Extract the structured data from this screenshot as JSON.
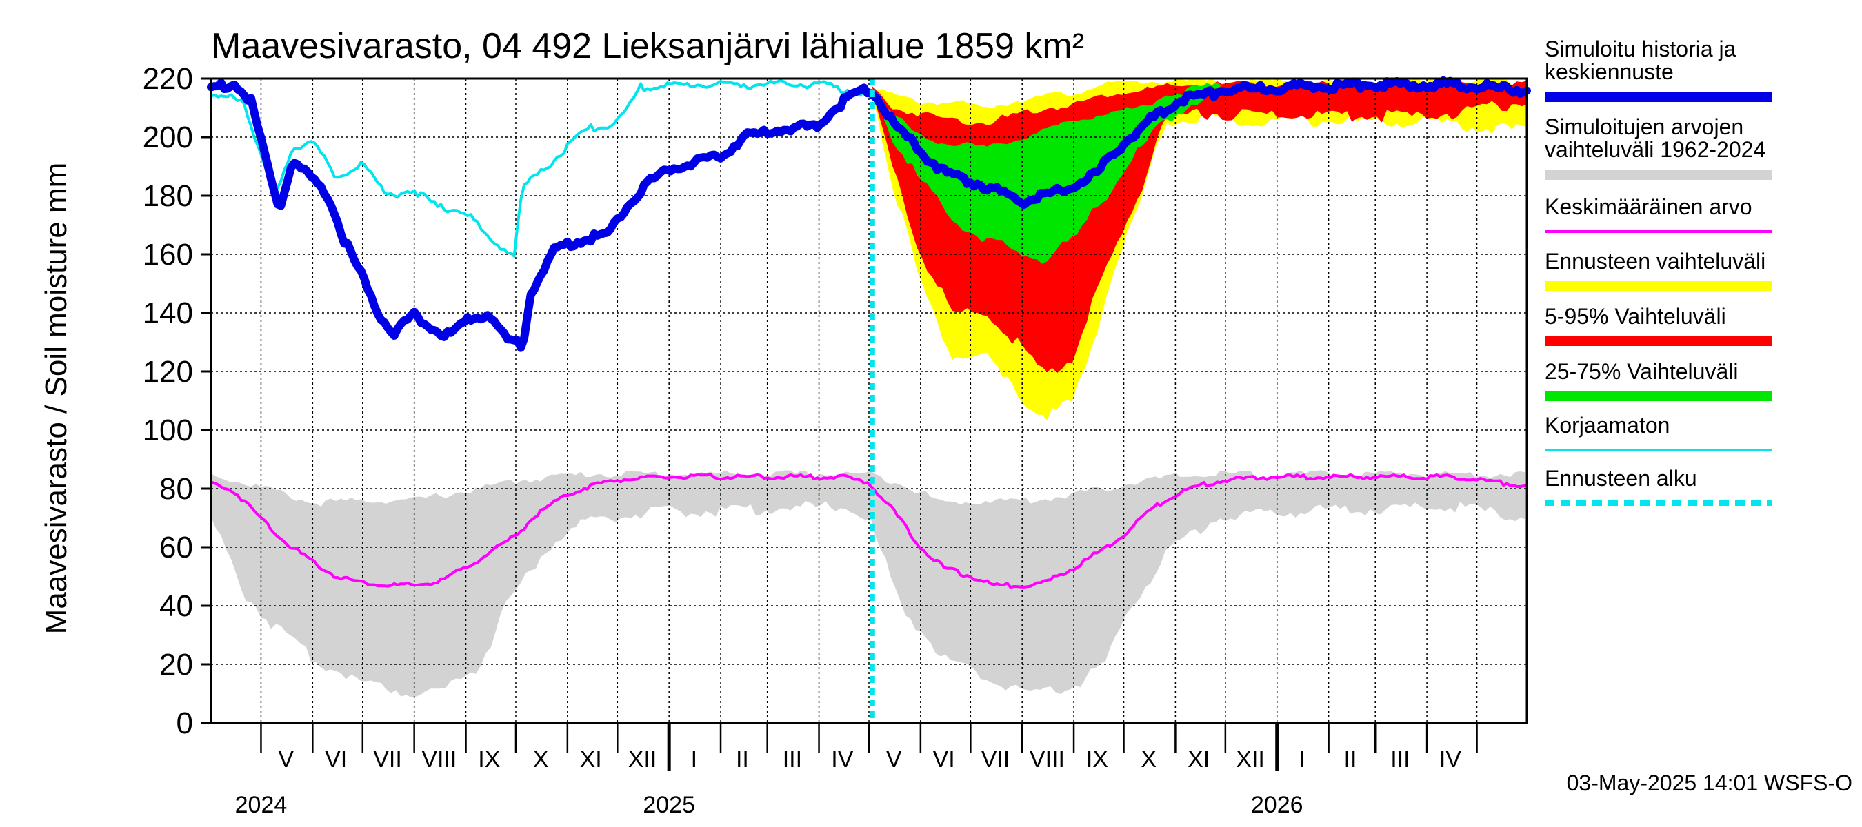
{
  "chart_data": {
    "type": "area",
    "title": "Maavesivarasto, 04 492 Lieksanjärvi lähialue 1859 km²",
    "ylabel": "Maavesivarasto / Soil moisture   mm",
    "ylim": [
      0,
      220
    ],
    "yticks": [
      0,
      20,
      40,
      60,
      80,
      100,
      120,
      140,
      160,
      180,
      200,
      220
    ],
    "x_range": [
      "2024-04-01",
      "2026-05-31"
    ],
    "grid": true,
    "legend_placement": "right",
    "month_labels": [
      {
        "label": "V",
        "date": "2024-05-16"
      },
      {
        "label": "VI",
        "date": "2024-06-15"
      },
      {
        "label": "VII",
        "date": "2024-07-16"
      },
      {
        "label": "VIII",
        "date": "2024-08-16"
      },
      {
        "label": "IX",
        "date": "2024-09-15"
      },
      {
        "label": "X",
        "date": "2024-10-16"
      },
      {
        "label": "XI",
        "date": "2024-11-15"
      },
      {
        "label": "XII",
        "date": "2024-12-16"
      },
      {
        "label": "I",
        "date": "2025-01-16"
      },
      {
        "label": "II",
        "date": "2025-02-14"
      },
      {
        "label": "III",
        "date": "2025-03-16"
      },
      {
        "label": "IV",
        "date": "2025-04-15"
      },
      {
        "label": "V",
        "date": "2025-05-16"
      },
      {
        "label": "VI",
        "date": "2025-06-15"
      },
      {
        "label": "VII",
        "date": "2025-07-16"
      },
      {
        "label": "VIII",
        "date": "2025-08-16"
      },
      {
        "label": "IX",
        "date": "2025-09-15"
      },
      {
        "label": "X",
        "date": "2025-10-16"
      },
      {
        "label": "XI",
        "date": "2025-11-15"
      },
      {
        "label": "XII",
        "date": "2025-12-16"
      },
      {
        "label": "I",
        "date": "2026-01-16"
      },
      {
        "label": "II",
        "date": "2026-02-14"
      },
      {
        "label": "III",
        "date": "2026-03-16"
      },
      {
        "label": "IV",
        "date": "2026-04-15"
      }
    ],
    "year_labels": [
      {
        "label": "2024",
        "date": "2024-05-01"
      },
      {
        "label": "2025",
        "date": "2025-01-01"
      },
      {
        "label": "2026",
        "date": "2026-01-01"
      }
    ],
    "forecast_start": "2025-05-03",
    "legend": [
      {
        "label": "Simuloitu historia ja\nkeskiennuste",
        "color": "#0000e6",
        "style": "thick"
      },
      {
        "label": "Simuloitujen arvojen\nvaihteluväli 1962-2024",
        "color": "#d3d3d3",
        "style": "thick"
      },
      {
        "label": "Keskimääräinen arvo",
        "color": "#ff00ff",
        "style": "thin"
      },
      {
        "label": "Ennusteen vaihteluväli",
        "color": "#ffff00",
        "style": "thick"
      },
      {
        "label": "5-95% Vaihteluväli",
        "color": "#ff0000",
        "style": "thick"
      },
      {
        "label": "25-75% Vaihteluväli",
        "color": "#00e600",
        "style": "thick"
      },
      {
        "label": "Korjaamaton",
        "color": "#00e5ee",
        "style": "thin"
      },
      {
        "label": "Ennusteen alku",
        "color": "#00e5ee",
        "style": "dashed"
      }
    ],
    "series": [
      {
        "name": "Simuloitu historia ja keskiennuste",
        "color": "#0000e6",
        "points": [
          [
            "2024-04-01",
            217
          ],
          [
            "2024-04-15",
            218
          ],
          [
            "2024-04-25",
            212
          ],
          [
            "2024-05-05",
            190
          ],
          [
            "2024-05-12",
            175
          ],
          [
            "2024-05-20",
            192
          ],
          [
            "2024-06-01",
            185
          ],
          [
            "2024-06-10",
            180
          ],
          [
            "2024-06-20",
            165
          ],
          [
            "2024-07-01",
            152
          ],
          [
            "2024-07-10",
            140
          ],
          [
            "2024-07-20",
            133
          ],
          [
            "2024-08-01",
            140
          ],
          [
            "2024-08-10",
            135
          ],
          [
            "2024-08-20",
            132
          ],
          [
            "2024-09-01",
            137
          ],
          [
            "2024-09-15",
            140
          ],
          [
            "2024-09-25",
            131
          ],
          [
            "2024-10-05",
            129
          ],
          [
            "2024-10-10",
            147
          ],
          [
            "2024-10-25",
            162
          ],
          [
            "2024-11-10",
            165
          ],
          [
            "2024-11-25",
            167
          ],
          [
            "2024-12-05",
            175
          ],
          [
            "2024-12-20",
            185
          ],
          [
            "2025-01-05",
            190
          ],
          [
            "2025-01-31",
            193
          ],
          [
            "2025-02-15",
            200
          ],
          [
            "2025-03-01",
            202
          ],
          [
            "2025-03-31",
            204
          ],
          [
            "2025-04-15",
            212
          ],
          [
            "2025-04-25",
            216
          ],
          [
            "2025-05-03",
            216
          ],
          [
            "2025-05-15",
            205
          ],
          [
            "2025-06-01",
            195
          ],
          [
            "2025-06-15",
            188
          ],
          [
            "2025-07-01",
            185
          ],
          [
            "2025-07-15",
            182
          ],
          [
            "2025-08-01",
            178
          ],
          [
            "2025-08-15",
            180
          ],
          [
            "2025-09-01",
            183
          ],
          [
            "2025-09-15",
            188
          ],
          [
            "2025-10-01",
            198
          ],
          [
            "2025-10-15",
            205
          ],
          [
            "2025-11-01",
            212
          ],
          [
            "2025-12-01",
            216
          ],
          [
            "2026-01-01",
            217
          ],
          [
            "2026-03-01",
            218
          ],
          [
            "2026-04-15",
            218
          ],
          [
            "2026-05-31",
            216
          ]
        ]
      },
      {
        "name": "Korjaamaton",
        "color": "#00e5ee",
        "points": [
          [
            "2024-04-01",
            215
          ],
          [
            "2024-04-20",
            212
          ],
          [
            "2024-05-01",
            195
          ],
          [
            "2024-05-10",
            180
          ],
          [
            "2024-05-20",
            195
          ],
          [
            "2024-06-01",
            200
          ],
          [
            "2024-06-15",
            185
          ],
          [
            "2024-07-01",
            192
          ],
          [
            "2024-07-15",
            180
          ],
          [
            "2024-08-01",
            182
          ],
          [
            "2024-08-15",
            176
          ],
          [
            "2024-09-01",
            175
          ],
          [
            "2024-09-15",
            165
          ],
          [
            "2024-09-30",
            160
          ],
          [
            "2024-10-05",
            183
          ],
          [
            "2024-10-20",
            190
          ],
          [
            "2024-11-01",
            197
          ],
          [
            "2024-11-15",
            203
          ],
          [
            "2024-12-01",
            205
          ],
          [
            "2024-12-15",
            217
          ],
          [
            "2025-01-15",
            218
          ],
          [
            "2025-02-15",
            218
          ],
          [
            "2025-03-31",
            218
          ],
          [
            "2025-04-20",
            216
          ],
          [
            "2025-05-03",
            214
          ]
        ]
      },
      {
        "name": "Keskimääräinen arvo",
        "color": "#ff00ff",
        "points": [
          [
            "2024-04-01",
            82
          ],
          [
            "2024-04-15",
            79
          ],
          [
            "2024-05-01",
            70
          ],
          [
            "2024-05-15",
            62
          ],
          [
            "2024-06-01",
            55
          ],
          [
            "2024-06-15",
            50
          ],
          [
            "2024-07-01",
            48
          ],
          [
            "2024-07-15",
            47
          ],
          [
            "2024-08-01",
            47
          ],
          [
            "2024-08-15",
            48
          ],
          [
            "2024-09-01",
            53
          ],
          [
            "2024-09-15",
            58
          ],
          [
            "2024-10-01",
            64
          ],
          [
            "2024-10-15",
            72
          ],
          [
            "2024-11-01",
            78
          ],
          [
            "2024-11-15",
            81
          ],
          [
            "2024-12-01",
            83
          ],
          [
            "2025-01-01",
            84
          ],
          [
            "2025-03-01",
            84
          ],
          [
            "2025-04-15",
            84
          ],
          [
            "2025-05-01",
            82
          ],
          [
            "2025-05-15",
            73
          ],
          [
            "2025-06-01",
            60
          ],
          [
            "2025-06-15",
            53
          ],
          [
            "2025-07-01",
            50
          ],
          [
            "2025-07-15",
            47
          ],
          [
            "2025-08-01",
            47
          ],
          [
            "2025-08-15",
            48
          ],
          [
            "2025-09-01",
            53
          ],
          [
            "2025-09-15",
            58
          ],
          [
            "2025-10-01",
            64
          ],
          [
            "2025-10-15",
            72
          ],
          [
            "2025-11-01",
            78
          ],
          [
            "2025-11-15",
            81
          ],
          [
            "2025-12-01",
            83
          ],
          [
            "2026-01-01",
            84
          ],
          [
            "2026-04-15",
            84
          ],
          [
            "2026-05-31",
            81
          ]
        ]
      }
    ],
    "bands": [
      {
        "name": "Simuloitujen arvojen vaihteluväli 1962-2024",
        "color": "#d3d3d3",
        "points": [
          [
            "2024-04-01",
            70,
            85
          ],
          [
            "2024-04-20",
            45,
            82
          ],
          [
            "2024-05-05",
            35,
            80
          ],
          [
            "2024-06-01",
            22,
            75
          ],
          [
            "2024-07-01",
            14,
            76
          ],
          [
            "2024-08-01",
            10,
            76
          ],
          [
            "2024-08-20",
            12,
            78
          ],
          [
            "2024-09-10",
            20,
            80
          ],
          [
            "2024-09-25",
            40,
            82
          ],
          [
            "2024-10-20",
            60,
            84
          ],
          [
            "2024-11-15",
            70,
            85
          ],
          [
            "2025-01-01",
            72,
            85
          ],
          [
            "2025-04-15",
            74,
            85
          ],
          [
            "2025-05-01",
            70,
            85
          ],
          [
            "2025-05-20",
            40,
            82
          ],
          [
            "2025-06-15",
            22,
            75
          ],
          [
            "2025-07-15",
            14,
            76
          ],
          [
            "2025-08-10",
            10,
            76
          ],
          [
            "2025-08-30",
            12,
            78
          ],
          [
            "2025-09-20",
            20,
            80
          ],
          [
            "2025-10-05",
            40,
            82
          ],
          [
            "2025-10-30",
            60,
            84
          ],
          [
            "2025-11-25",
            70,
            85
          ],
          [
            "2026-01-01",
            72,
            85
          ],
          [
            "2026-04-15",
            74,
            85
          ],
          [
            "2026-05-31",
            70,
            85
          ]
        ]
      },
      {
        "name": "Ennusteen vaihteluväli",
        "color": "#ffff00",
        "points": [
          [
            "2025-05-03",
            215,
            218
          ],
          [
            "2025-05-15",
            185,
            214
          ],
          [
            "2025-06-01",
            150,
            212
          ],
          [
            "2025-06-20",
            125,
            212
          ],
          [
            "2025-07-10",
            125,
            210
          ],
          [
            "2025-08-01",
            110,
            213
          ],
          [
            "2025-08-15",
            105,
            214
          ],
          [
            "2025-09-01",
            110,
            215
          ],
          [
            "2025-09-10",
            125,
            217
          ],
          [
            "2025-09-25",
            155,
            218
          ],
          [
            "2025-10-10",
            175,
            219
          ],
          [
            "2025-10-25",
            205,
            219
          ],
          [
            "2025-11-15",
            206,
            219
          ],
          [
            "2026-04-01",
            205,
            219
          ],
          [
            "2026-05-31",
            202,
            219
          ]
        ]
      },
      {
        "name": "5-95% Vaihteluväli",
        "color": "#ff0000",
        "points": [
          [
            "2025-05-03",
            215,
            217
          ],
          [
            "2025-05-15",
            190,
            210
          ],
          [
            "2025-06-01",
            160,
            208
          ],
          [
            "2025-06-20",
            140,
            206
          ],
          [
            "2025-07-10",
            140,
            205
          ],
          [
            "2025-08-01",
            128,
            208
          ],
          [
            "2025-08-15",
            118,
            210
          ],
          [
            "2025-09-01",
            125,
            211
          ],
          [
            "2025-09-10",
            140,
            213
          ],
          [
            "2025-09-25",
            160,
            215
          ],
          [
            "2025-10-10",
            180,
            216
          ],
          [
            "2025-10-25",
            207,
            217
          ],
          [
            "2025-11-15",
            208,
            218
          ],
          [
            "2026-04-01",
            207,
            218
          ],
          [
            "2026-05-31",
            212,
            218
          ]
        ]
      },
      {
        "name": "25-75% Vaihteluväli",
        "color": "#00e600",
        "points": [
          [
            "2025-05-03",
            215,
            216
          ],
          [
            "2025-05-15",
            200,
            208
          ],
          [
            "2025-06-01",
            185,
            200
          ],
          [
            "2025-06-20",
            172,
            198
          ],
          [
            "2025-07-10",
            165,
            196
          ],
          [
            "2025-08-01",
            160,
            200
          ],
          [
            "2025-08-15",
            158,
            202
          ],
          [
            "2025-09-01",
            165,
            206
          ],
          [
            "2025-09-20",
            180,
            208
          ],
          [
            "2025-10-10",
            195,
            210
          ],
          [
            "2025-10-25",
            205,
            214
          ],
          [
            "2025-11-15",
            213,
            217
          ],
          [
            "2025-12-01",
            216,
            218
          ]
        ]
      }
    ]
  },
  "footer": "03-May-2025 14:01 WSFS-O"
}
